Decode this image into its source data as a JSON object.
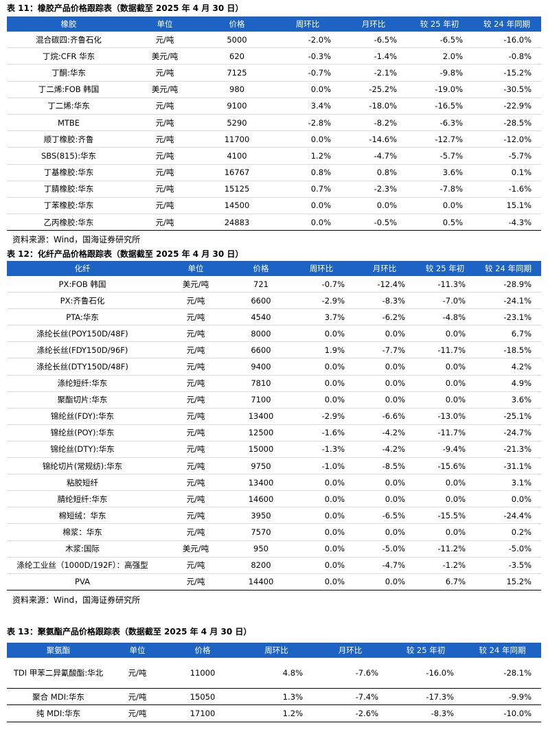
{
  "t1": {
    "title": "表 11：橡胶产品价格跟踪表（数据截至 2025 年 4 月 30 日）",
    "headers": [
      "橡胶",
      "单位",
      "价格",
      "周环比",
      "月环比",
      "较 25 年初",
      "较 24 年同期"
    ],
    "rows": [
      [
        "混合碳四:齐鲁石化",
        "元/吨",
        "5000",
        "-2.0%",
        "-6.5%",
        "-6.5%",
        "-16.0%"
      ],
      [
        "丁烷:CFR 华东",
        "美元/吨",
        "620",
        "-0.3%",
        "-1.4%",
        "2.0%",
        "-0.8%"
      ],
      [
        "丁酮:华东",
        "元/吨",
        "7125",
        "-0.7%",
        "-2.1%",
        "-9.8%",
        "-15.2%"
      ],
      [
        "丁二烯:FOB 韩国",
        "美元/吨",
        "980",
        "0.0%",
        "-25.2%",
        "-19.0%",
        "-30.5%"
      ],
      [
        "丁二烯:华东",
        "元/吨",
        "9100",
        "3.4%",
        "-18.0%",
        "-16.5%",
        "-22.9%"
      ],
      [
        "MTBE",
        "元/吨",
        "5290",
        "-2.8%",
        "-8.2%",
        "-6.3%",
        "-28.5%"
      ],
      [
        "顺丁橡胶:齐鲁",
        "元/吨",
        "11700",
        "0.0%",
        "-14.6%",
        "-12.7%",
        "-12.0%"
      ],
      [
        "SBS(815):华东",
        "元/吨",
        "4100",
        "1.2%",
        "-4.7%",
        "-5.7%",
        "-5.7%"
      ],
      [
        "丁基橡胶:华东",
        "元/吨",
        "16767",
        "0.8%",
        "0.8%",
        "3.6%",
        "0.1%"
      ],
      [
        "丁腈橡胶:华东",
        "元/吨",
        "15125",
        "0.7%",
        "-2.3%",
        "-7.8%",
        "-1.6%"
      ],
      [
        "丁苯橡胶:华东",
        "元/吨",
        "14500",
        "0.0%",
        "0.0%",
        "0.0%",
        "15.1%"
      ],
      [
        "乙丙橡胶:华东",
        "元/吨",
        "24883",
        "0.0%",
        "-0.5%",
        "0.5%",
        "-4.3%"
      ]
    ],
    "source": "资料来源：Wind，国海证券研究所"
  },
  "t2": {
    "title": "表 12：化纤产品价格跟踪表（数据截至 2025 年 4 月 30 日）",
    "headers": [
      "化纤",
      "单位",
      "价格",
      "周环比",
      "月环比",
      "较 25 年初",
      "较 24 年同期"
    ],
    "rows": [
      [
        "PX:FOB 韩国",
        "美元/吨",
        "721",
        "-0.7%",
        "-12.4%",
        "-11.3%",
        "-28.9%"
      ],
      [
        "PX:齐鲁石化",
        "元/吨",
        "6600",
        "-2.9%",
        "-8.3%",
        "-7.0%",
        "-24.1%"
      ],
      [
        "PTA:华东",
        "元/吨",
        "4540",
        "3.7%",
        "-6.2%",
        "-4.8%",
        "-23.1%"
      ],
      [
        "涤纶长丝(POY150D/48F)",
        "元/吨",
        "8000",
        "0.0%",
        "0.0%",
        "0.0%",
        "6.7%"
      ],
      [
        "涤纶长丝(FDY150D/96F)",
        "元/吨",
        "6600",
        "1.9%",
        "-7.7%",
        "-11.7%",
        "-18.5%"
      ],
      [
        "涤纶长丝(DTY150D/48F)",
        "元/吨",
        "9400",
        "0.0%",
        "0.0%",
        "0.0%",
        "4.2%"
      ],
      [
        "涤纶短纤:华东",
        "元/吨",
        "7810",
        "0.0%",
        "0.0%",
        "0.0%",
        "4.9%"
      ],
      [
        "聚酯切片:华东",
        "元/吨",
        "7100",
        "0.0%",
        "0.0%",
        "0.0%",
        "3.6%"
      ],
      [
        "锦纶丝(FDY):华东",
        "元/吨",
        "13400",
        "-2.9%",
        "-6.6%",
        "-13.0%",
        "-25.1%"
      ],
      [
        "锦纶丝(POY):华东",
        "元/吨",
        "12500",
        "-1.6%",
        "-4.2%",
        "-11.7%",
        "-24.7%"
      ],
      [
        "锦纶丝(DTY):华东",
        "元/吨",
        "15000",
        "-1.3%",
        "-4.2%",
        "-9.4%",
        "-21.3%"
      ],
      [
        "锦纶切片(常规纺):华东",
        "元/吨",
        "9750",
        "-1.0%",
        "-8.5%",
        "-15.6%",
        "-31.1%"
      ],
      [
        "粘胶短纤",
        "元/吨",
        "13400",
        "0.0%",
        "0.0%",
        "0.0%",
        "3.1%"
      ],
      [
        "腈纶短纤:华东",
        "元/吨",
        "14600",
        "0.0%",
        "0.0%",
        "0.0%",
        "0.0%"
      ],
      [
        "棉短绒：华东",
        "元/吨",
        "3950",
        "0.0%",
        "-6.5%",
        "-15.5%",
        "-24.4%"
      ],
      [
        "棉浆：华东",
        "元/吨",
        "7570",
        "0.0%",
        "0.0%",
        "0.0%",
        "0.2%"
      ],
      [
        "木浆:国际",
        "美元/吨",
        "950",
        "0.0%",
        "-5.0%",
        "-11.2%",
        "-5.0%"
      ],
      [
        "涤纶工业丝（1000D/192F）：高强型",
        "元/吨",
        "8200",
        "0.0%",
        "-4.7%",
        "-1.2%",
        "-3.5%"
      ],
      [
        "PVA",
        "元/吨",
        "14400",
        "0.0%",
        "0.0%",
        "6.7%",
        "15.2%"
      ]
    ],
    "source": "资料来源：Wind，国海证券研究所"
  },
  "t3": {
    "title": "表 13：聚氨酯产品价格跟踪表（数据截至 2025 年 4 月 30 日）",
    "headers": [
      "聚氨酯",
      "单位",
      "价格",
      "周环比",
      "月环比",
      "较 25 年初",
      "较 24 年同期"
    ],
    "rows": [
      [
        "TDI 甲苯二异氰酸酯:华北",
        "元/吨",
        "11000",
        "4.8%",
        "-7.6%",
        "-16.0%",
        "-28.1%"
      ],
      [
        "聚合 MDI:华东",
        "元/吨",
        "15050",
        "1.3%",
        "-7.4%",
        "-17.3%",
        "-9.9%"
      ],
      [
        "纯 MDI:华东",
        "元/吨",
        "17100",
        "1.2%",
        "-2.6%",
        "-8.3%",
        "-10.0%"
      ]
    ]
  }
}
